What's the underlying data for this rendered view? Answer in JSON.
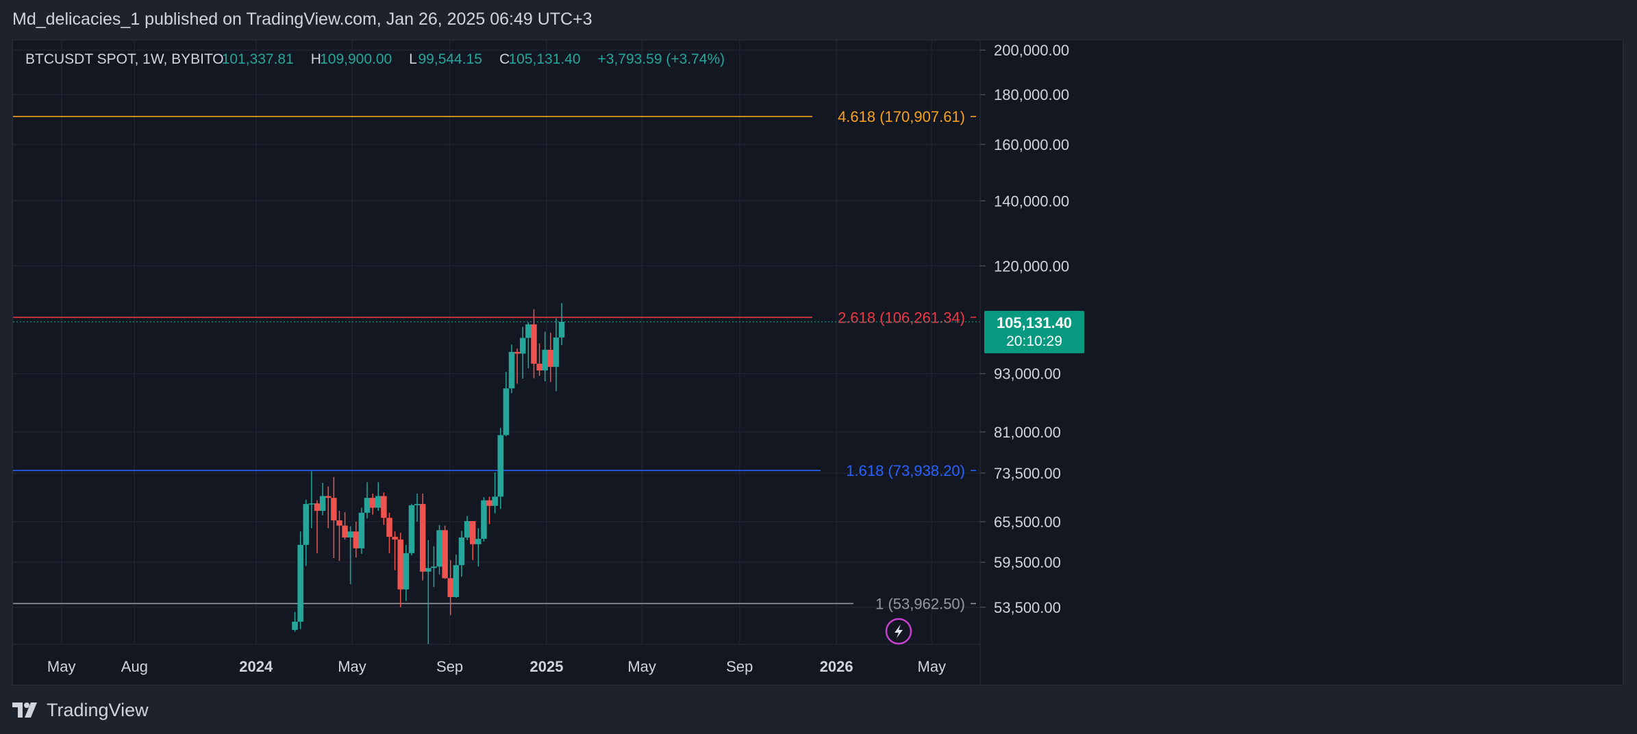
{
  "header": {
    "caption": "Md_delicacies_1 published on TradingView.com, Jan 26, 2025 06:49 UTC+3"
  },
  "footer": {
    "brand": "TradingView"
  },
  "colors": {
    "background": "#131722",
    "bull": "#26a69a",
    "bear": "#ef5350",
    "fib_4618": "#f7a21b",
    "fib_2618": "#f23645",
    "fib_1618": "#2962ff",
    "fib_1": "#9598a1",
    "price_tag": "#089981"
  },
  "chart_data": {
    "type": "candlestick",
    "symbol": "BTCUSDT SPOT, 1W, BYBIT",
    "ohlc_legend": {
      "o_label": "O",
      "o_value": "101,337.81",
      "h_label": "H",
      "h_value": "109,900.00",
      "l_label": "L",
      "l_value": "99,544.15",
      "c_label": "C",
      "c_value": "105,131.40",
      "change": "+3,793.59 (+3.74%)"
    },
    "y_scale": "log",
    "ylim": [
      49000,
      204000
    ],
    "y_ticks": [
      {
        "value": 200000,
        "label": "200,000.00"
      },
      {
        "value": 180000,
        "label": "180,000.00"
      },
      {
        "value": 160000,
        "label": "160,000.00"
      },
      {
        "value": 140000,
        "label": "140,000.00"
      },
      {
        "value": 120000,
        "label": "120,000.00"
      },
      {
        "value": 93000,
        "label": "93,000.00"
      },
      {
        "value": 81000,
        "label": "81,000.00"
      },
      {
        "value": 73500,
        "label": "73,500.00"
      },
      {
        "value": 65500,
        "label": "65,500.00"
      },
      {
        "value": 59500,
        "label": "59,500.00"
      },
      {
        "value": 53500,
        "label": "53,500.00"
      }
    ],
    "xlim": [
      "2023-03-01",
      "2026-07-01"
    ],
    "x_ticks": [
      {
        "date": "2023-05-01",
        "label": "May",
        "bold": false
      },
      {
        "date": "2023-08-01",
        "label": "Aug",
        "bold": false
      },
      {
        "date": "2024-01-01",
        "label": "2024",
        "bold": true
      },
      {
        "date": "2024-05-01",
        "label": "May",
        "bold": false
      },
      {
        "date": "2024-09-01",
        "label": "Sep",
        "bold": false
      },
      {
        "date": "2025-01-01",
        "label": "2025",
        "bold": true
      },
      {
        "date": "2025-05-01",
        "label": "May",
        "bold": false
      },
      {
        "date": "2025-09-01",
        "label": "Sep",
        "bold": false
      },
      {
        "date": "2026-01-01",
        "label": "2026",
        "bold": true
      },
      {
        "date": "2026-05-01",
        "label": "May",
        "bold": false
      }
    ],
    "fib_levels": [
      {
        "ratio": "4.618",
        "price": 170907.61,
        "label": "4.618 (170,907.61)",
        "color": "#f7a21b"
      },
      {
        "ratio": "2.618",
        "price": 106261.34,
        "label": "2.618 (106,261.34)",
        "color": "#f23645"
      },
      {
        "ratio": "1.618",
        "price": 73938.2,
        "label": "1.618 (73,938.20)",
        "color": "#2962ff"
      },
      {
        "ratio": "1",
        "price": 53962.5,
        "label": "1 (53,962.50)",
        "color": "#9598a1"
      }
    ],
    "last_price": {
      "value": 105131.4,
      "label": "105,131.40",
      "countdown": "20:10:29"
    },
    "candles": [
      {
        "date": "2024-02-19",
        "o": 50700,
        "h": 52900,
        "l": 50500,
        "c": 51700
      },
      {
        "date": "2024-02-26",
        "o": 51700,
        "h": 64000,
        "l": 50800,
        "c": 62000
      },
      {
        "date": "2024-03-04",
        "o": 62000,
        "h": 69000,
        "l": 59000,
        "c": 68300
      },
      {
        "date": "2024-03-11",
        "o": 68300,
        "h": 73800,
        "l": 64500,
        "c": 68400
      },
      {
        "date": "2024-03-18",
        "o": 68400,
        "h": 68900,
        "l": 60800,
        "c": 67200
      },
      {
        "date": "2024-03-25",
        "o": 67200,
        "h": 71800,
        "l": 66500,
        "c": 69600
      },
      {
        "date": "2024-04-01",
        "o": 69600,
        "h": 71200,
        "l": 64500,
        "c": 69300
      },
      {
        "date": "2024-04-08",
        "o": 69300,
        "h": 72800,
        "l": 60100,
        "c": 65700
      },
      {
        "date": "2024-04-15",
        "o": 65700,
        "h": 67200,
        "l": 59700,
        "c": 64900
      },
      {
        "date": "2024-04-22",
        "o": 64900,
        "h": 67000,
        "l": 62800,
        "c": 63100
      },
      {
        "date": "2024-04-29",
        "o": 63100,
        "h": 64800,
        "l": 56500,
        "c": 64000
      },
      {
        "date": "2024-05-06",
        "o": 64000,
        "h": 65500,
        "l": 60200,
        "c": 61500
      },
      {
        "date": "2024-05-13",
        "o": 61500,
        "h": 67700,
        "l": 60700,
        "c": 66900
      },
      {
        "date": "2024-05-20",
        "o": 66900,
        "h": 71900,
        "l": 66000,
        "c": 69300
      },
      {
        "date": "2024-05-27",
        "o": 69300,
        "h": 70000,
        "l": 66600,
        "c": 67700
      },
      {
        "date": "2024-06-03",
        "o": 67700,
        "h": 71900,
        "l": 67200,
        "c": 69600
      },
      {
        "date": "2024-06-10",
        "o": 69600,
        "h": 70200,
        "l": 65000,
        "c": 66100
      },
      {
        "date": "2024-06-17",
        "o": 66100,
        "h": 66900,
        "l": 60800,
        "c": 63200
      },
      {
        "date": "2024-06-24",
        "o": 63200,
        "h": 64000,
        "l": 58400,
        "c": 62800
      },
      {
        "date": "2024-07-01",
        "o": 62800,
        "h": 63800,
        "l": 53500,
        "c": 55800
      },
      {
        "date": "2024-07-08",
        "o": 55800,
        "h": 62000,
        "l": 54300,
        "c": 60800
      },
      {
        "date": "2024-07-15",
        "o": 60800,
        "h": 68300,
        "l": 60500,
        "c": 68100
      },
      {
        "date": "2024-07-22",
        "o": 68100,
        "h": 70000,
        "l": 65500,
        "c": 68300
      },
      {
        "date": "2024-07-29",
        "o": 68300,
        "h": 70000,
        "l": 57000,
        "c": 58200
      },
      {
        "date": "2024-08-05",
        "o": 58200,
        "h": 62700,
        "l": 49000,
        "c": 58700
      },
      {
        "date": "2024-08-12",
        "o": 58700,
        "h": 61800,
        "l": 56100,
        "c": 58900
      },
      {
        "date": "2024-08-19",
        "o": 58900,
        "h": 65000,
        "l": 57800,
        "c": 64200
      },
      {
        "date": "2024-08-26",
        "o": 64200,
        "h": 64900,
        "l": 57200,
        "c": 57300
      },
      {
        "date": "2024-09-02",
        "o": 57300,
        "h": 59800,
        "l": 52500,
        "c": 54800
      },
      {
        "date": "2024-09-09",
        "o": 54800,
        "h": 60600,
        "l": 54700,
        "c": 59100
      },
      {
        "date": "2024-09-16",
        "o": 59100,
        "h": 64100,
        "l": 57500,
        "c": 63100
      },
      {
        "date": "2024-09-23",
        "o": 63100,
        "h": 66400,
        "l": 62700,
        "c": 65600
      },
      {
        "date": "2024-09-30",
        "o": 65600,
        "h": 65600,
        "l": 59800,
        "c": 62100
      },
      {
        "date": "2024-10-07",
        "o": 62100,
        "h": 64500,
        "l": 58900,
        "c": 62900
      },
      {
        "date": "2024-10-14",
        "o": 62900,
        "h": 69400,
        "l": 62500,
        "c": 68900
      },
      {
        "date": "2024-10-21",
        "o": 68900,
        "h": 69500,
        "l": 65100,
        "c": 68000
      },
      {
        "date": "2024-10-28",
        "o": 68000,
        "h": 73600,
        "l": 66800,
        "c": 69500
      },
      {
        "date": "2024-11-04",
        "o": 69500,
        "h": 81800,
        "l": 67500,
        "c": 80400
      },
      {
        "date": "2024-11-11",
        "o": 80400,
        "h": 93400,
        "l": 80200,
        "c": 89800
      },
      {
        "date": "2024-11-18",
        "o": 89800,
        "h": 99600,
        "l": 88800,
        "c": 97900
      },
      {
        "date": "2024-11-25",
        "o": 97900,
        "h": 98700,
        "l": 90800,
        "c": 97500
      },
      {
        "date": "2024-12-02",
        "o": 97500,
        "h": 103900,
        "l": 91900,
        "c": 101200
      },
      {
        "date": "2024-12-09",
        "o": 101200,
        "h": 105000,
        "l": 94200,
        "c": 104500
      },
      {
        "date": "2024-12-16",
        "o": 104500,
        "h": 108300,
        "l": 92000,
        "c": 95200
      },
      {
        "date": "2024-12-23",
        "o": 95200,
        "h": 99900,
        "l": 92500,
        "c": 93700
      },
      {
        "date": "2024-12-30",
        "o": 93700,
        "h": 102700,
        "l": 91300,
        "c": 98400
      },
      {
        "date": "2025-01-06",
        "o": 98400,
        "h": 102500,
        "l": 91200,
        "c": 94500
      },
      {
        "date": "2025-01-13",
        "o": 94500,
        "h": 106000,
        "l": 89200,
        "c": 101300
      },
      {
        "date": "2025-01-20",
        "o": 101300,
        "h": 109900,
        "l": 99500,
        "c": 105131
      }
    ]
  }
}
